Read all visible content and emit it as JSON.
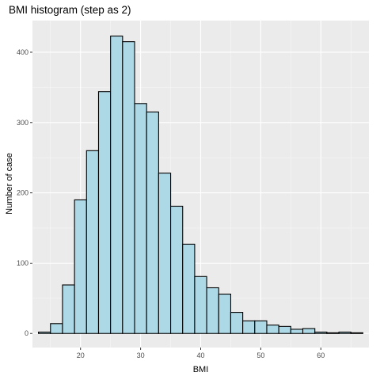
{
  "chart_data": {
    "type": "bar",
    "title": "BMI histogram (step as 2)",
    "xlabel": "BMI",
    "ylabel": "Number of case",
    "xlim": [
      12,
      68
    ],
    "ylim": [
      -20,
      445
    ],
    "xticks": [
      20,
      30,
      40,
      50,
      60
    ],
    "yticks": [
      0,
      100,
      200,
      300,
      400
    ],
    "bin_width": 2,
    "grid": true,
    "bins": [
      {
        "x": 14,
        "count": 2
      },
      {
        "x": 16,
        "count": 14
      },
      {
        "x": 18,
        "count": 69
      },
      {
        "x": 20,
        "count": 190
      },
      {
        "x": 22,
        "count": 260
      },
      {
        "x": 24,
        "count": 344
      },
      {
        "x": 26,
        "count": 423
      },
      {
        "x": 28,
        "count": 415
      },
      {
        "x": 30,
        "count": 327
      },
      {
        "x": 32,
        "count": 315
      },
      {
        "x": 34,
        "count": 228
      },
      {
        "x": 36,
        "count": 181
      },
      {
        "x": 38,
        "count": 127
      },
      {
        "x": 40,
        "count": 81
      },
      {
        "x": 42,
        "count": 65
      },
      {
        "x": 44,
        "count": 56
      },
      {
        "x": 46,
        "count": 30
      },
      {
        "x": 48,
        "count": 18
      },
      {
        "x": 50,
        "count": 18
      },
      {
        "x": 52,
        "count": 12
      },
      {
        "x": 54,
        "count": 10
      },
      {
        "x": 56,
        "count": 6
      },
      {
        "x": 58,
        "count": 7
      },
      {
        "x": 60,
        "count": 2
      },
      {
        "x": 62,
        "count": 1
      },
      {
        "x": 64,
        "count": 2
      },
      {
        "x": 66,
        "count": 1
      }
    ],
    "colors": {
      "bar_fill": "#add8e6",
      "bar_stroke": "#000000",
      "panel_background": "#ebebeb",
      "grid": "#ffffff"
    }
  }
}
